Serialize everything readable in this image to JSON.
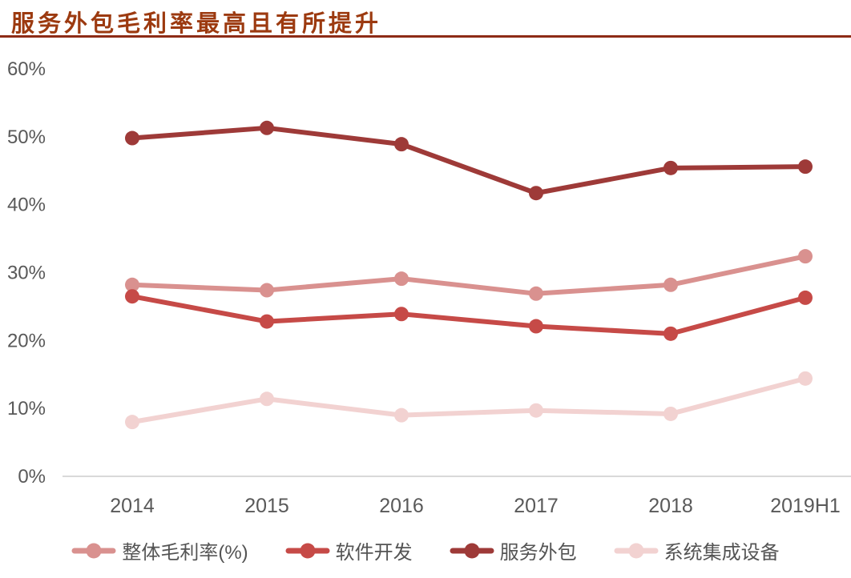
{
  "chart_data": {
    "type": "line",
    "title": "服务外包毛利率最高且有所提升",
    "categories": [
      "2014",
      "2015",
      "2016",
      "2017",
      "2018",
      "2019H1"
    ],
    "series": [
      {
        "key": "overall",
        "name": "整体毛利率(%)",
        "color": "#d9918f",
        "values": [
          28.2,
          27.4,
          29.1,
          26.9,
          28.2,
          32.4
        ]
      },
      {
        "key": "software",
        "name": "软件开发",
        "color": "#c64a47",
        "values": [
          26.5,
          22.8,
          23.9,
          22.1,
          21.0,
          26.3
        ]
      },
      {
        "key": "outsourcing",
        "name": "服务外包",
        "color": "#9e3a38",
        "values": [
          49.8,
          51.3,
          48.9,
          41.7,
          45.4,
          45.6
        ]
      },
      {
        "key": "system",
        "name": "系统集成设备",
        "color": "#f2d2d1",
        "values": [
          8.0,
          11.4,
          9.0,
          9.7,
          9.2,
          14.4
        ]
      }
    ],
    "y_ticks": [
      {
        "label": "60%",
        "value": 60
      },
      {
        "label": "50%",
        "value": 50
      },
      {
        "label": "40%",
        "value": 40
      },
      {
        "label": "30%",
        "value": 30
      },
      {
        "label": "20%",
        "value": 20
      },
      {
        "label": "10%",
        "value": 10
      },
      {
        "label": "0%",
        "value": 0
      }
    ],
    "ylim": [
      0,
      60
    ],
    "xlabel": "",
    "ylabel": "",
    "grid": false,
    "legend_position": "bottom",
    "colors": {
      "title": "#9c3a10",
      "title_rule": "#8d2b16",
      "axis_line": "#d9d9d9",
      "tick_text": "#595959",
      "legend_text": "#545454"
    }
  }
}
